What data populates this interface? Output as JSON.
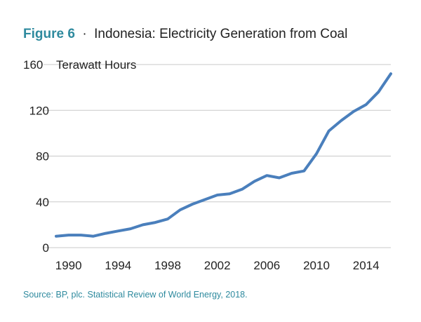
{
  "figure": {
    "label": "Figure 6",
    "separator": "·",
    "title": "Indonesia: Electricity Generation from Coal"
  },
  "source": "Source: BP, plc. Statistical Review of World Energy, 2018.",
  "colors": {
    "accent": "#2e8a9e",
    "line": "#4a7fbc",
    "grid": "#c9c9c9"
  },
  "chart_data": {
    "type": "line",
    "title": "Indonesia: Electricity Generation from Coal",
    "ylabel": "Terawatt Hours",
    "xlabel": "",
    "ylim": [
      0,
      160
    ],
    "xlim": [
      1989,
      2016
    ],
    "grid": true,
    "y_ticks": [
      0,
      40,
      80,
      120,
      160
    ],
    "y_tick_labels": [
      "0",
      "40",
      "80",
      "120",
      "160"
    ],
    "x_ticks": [
      1990,
      1994,
      1998,
      2002,
      2006,
      2010,
      2014
    ],
    "x_tick_labels": [
      "1990",
      "1994",
      "1998",
      "2002",
      "2006",
      "2010",
      "2014"
    ],
    "series": [
      {
        "x": [
          1989,
          1990,
          1991,
          1992,
          1993,
          1994,
          1995,
          1996,
          1997,
          1998,
          1999,
          2000,
          2001,
          2002,
          2003,
          2004,
          2005,
          2006,
          2007,
          2008,
          2009,
          2010,
          2011,
          2012,
          2013,
          2014,
          2015,
          2016
        ],
        "values": [
          10,
          11,
          11,
          10,
          12.5,
          14.5,
          16.5,
          20,
          22,
          25,
          33,
          38,
          42,
          46,
          47,
          51,
          58,
          63,
          61,
          65,
          67,
          82,
          102,
          111,
          119,
          125,
          136,
          152
        ]
      }
    ]
  }
}
